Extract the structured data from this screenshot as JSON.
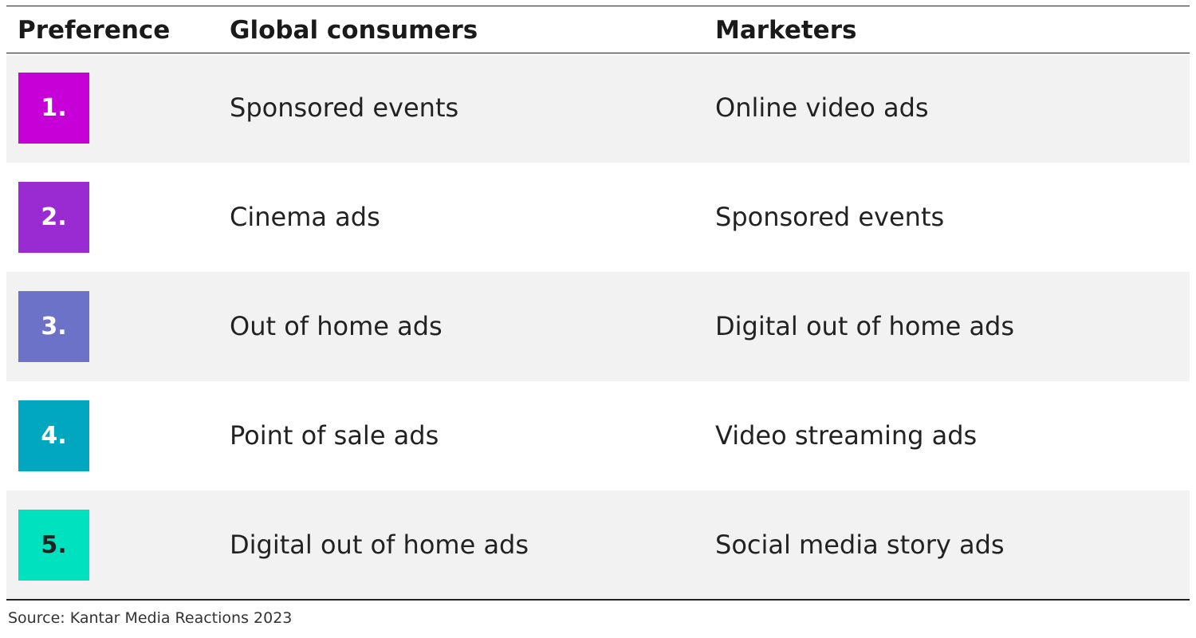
{
  "table": {
    "headers": [
      "Preference",
      "Global consumers",
      "Marketers"
    ],
    "rows": [
      [
        "1.",
        "Sponsored events",
        "Online video ads"
      ],
      [
        "2.",
        "Cinema ads",
        "Sponsored events"
      ],
      [
        "3.",
        "Out of home ads",
        "Digital out of home ads"
      ],
      [
        "4.",
        "Point of sale ads",
        "Video streaming ads"
      ],
      [
        "5.",
        "Digital out of home ads",
        "Social media story ads"
      ]
    ]
  },
  "source": "Source: Kantar Media Reactions 2023"
}
